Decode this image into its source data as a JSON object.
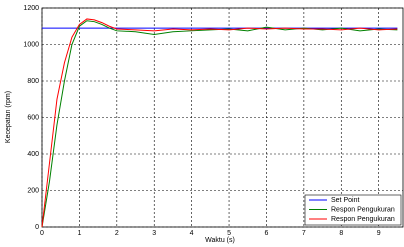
{
  "chart_data": {
    "type": "line",
    "x_label": "Waktu (s)",
    "y_label": "Kecepatan (rpm)",
    "x": [
      0,
      0.2,
      0.4,
      0.6,
      0.8,
      1.0,
      1.2,
      1.4,
      1.6,
      1.8,
      2,
      2.5,
      3,
      3.5,
      4,
      4.5,
      5,
      5.5,
      6,
      6.5,
      7,
      7.5,
      8,
      8.5,
      9,
      9.5
    ],
    "series": [
      {
        "name": "Set Point",
        "color": "#0000ff",
        "values": [
          1090,
          1090,
          1090,
          1090,
          1090,
          1090,
          1090,
          1090,
          1090,
          1090,
          1090,
          1090,
          1090,
          1090,
          1090,
          1090,
          1090,
          1090,
          1090,
          1090,
          1090,
          1090,
          1090,
          1090,
          1090,
          1090
        ]
      },
      {
        "name": "Respon Pengukuran",
        "color": "#008000",
        "values": [
          0,
          250,
          560,
          800,
          1000,
          1100,
          1130,
          1125,
          1110,
          1090,
          1075,
          1070,
          1055,
          1070,
          1075,
          1080,
          1085,
          1075,
          1095,
          1080,
          1090,
          1080,
          1090,
          1075,
          1085,
          1080
        ]
      },
      {
        "name": "Respon Pengukuran",
        "color": "#ff0000",
        "values": [
          0,
          350,
          700,
          900,
          1040,
          1110,
          1140,
          1135,
          1120,
          1100,
          1085,
          1080,
          1075,
          1085,
          1080,
          1085,
          1080,
          1090,
          1085,
          1090,
          1085,
          1085,
          1080,
          1090,
          1080,
          1085
        ]
      }
    ],
    "xlim": [
      0,
      9.65
    ],
    "xticks": [
      0,
      1,
      2,
      3,
      4,
      5,
      6,
      7,
      8,
      9
    ],
    "ylim": [
      0,
      1200
    ],
    "yticks": [
      0,
      200,
      400,
      600,
      800,
      1000,
      1200
    ],
    "grid": true,
    "legend": "lower right"
  }
}
